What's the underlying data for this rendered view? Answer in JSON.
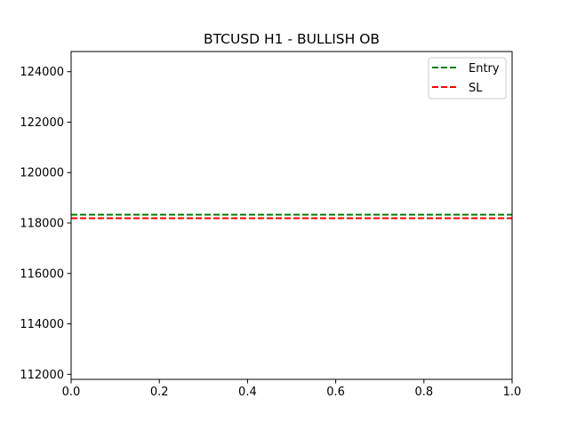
{
  "chart_data": {
    "type": "line",
    "title": "BTCUSD H1 - BULLISH OB",
    "xlabel": "",
    "ylabel": "",
    "xlim": [
      0.0,
      1.0
    ],
    "ylim": [
      111800,
      124800
    ],
    "x_ticks": [
      0.0,
      0.2,
      0.4,
      0.6,
      0.8,
      1.0
    ],
    "x_tick_labels": [
      "0.0",
      "0.2",
      "0.4",
      "0.6",
      "0.8",
      "1.0"
    ],
    "y_ticks": [
      112000,
      114000,
      116000,
      118000,
      120000,
      122000,
      124000
    ],
    "y_tick_labels": [
      "112000",
      "114000",
      "116000",
      "118000",
      "120000",
      "122000",
      "124000"
    ],
    "grid": false,
    "legend_position": "top-right",
    "series": [
      {
        "name": "Entry",
        "style": "dashed",
        "color": "#008000",
        "x": [
          0.0,
          1.0
        ],
        "y": [
          118330,
          118330
        ]
      },
      {
        "name": "SL",
        "style": "dashed",
        "color": "#ff0000",
        "x": [
          0.0,
          1.0
        ],
        "y": [
          118190,
          118190
        ]
      }
    ]
  }
}
